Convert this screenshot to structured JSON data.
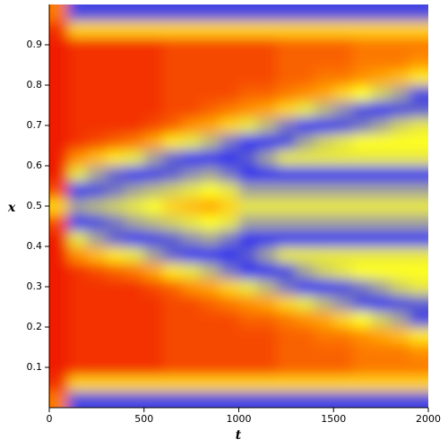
{
  "chart_data": {
    "type": "heatmap",
    "xlabel": "t",
    "ylabel": "x",
    "xlim": [
      0,
      2000
    ],
    "ylim": [
      0,
      1
    ],
    "xticks": [
      0,
      500,
      1000,
      1500,
      2000
    ],
    "yticks": [
      0.1,
      0.2,
      0.3,
      0.4,
      0.5,
      0.6,
      0.7,
      0.8,
      0.9
    ],
    "zlim": [
      0,
      1
    ],
    "colorscale": [
      [
        0,
        "#1414ff"
      ],
      [
        0.25,
        "#8c8cb4"
      ],
      [
        0.5,
        "#ffff1e"
      ],
      [
        0.75,
        "#ff9000"
      ],
      [
        1,
        "#f01c00"
      ]
    ],
    "x": [
      50,
      150,
      250,
      350,
      450,
      550,
      650,
      750,
      850,
      950,
      1050,
      1150,
      1250,
      1350,
      1450,
      1550,
      1650,
      1750,
      1850,
      1950
    ],
    "y": [
      0.02,
      0.06,
      0.1,
      0.14,
      0.18,
      0.22,
      0.26,
      0.3,
      0.34,
      0.38,
      0.42,
      0.46,
      0.5,
      0.54,
      0.58,
      0.62,
      0.66,
      0.7,
      0.74,
      0.78,
      0.82,
      0.86,
      0.9,
      0.94,
      0.98
    ],
    "z": [
      [
        0.8,
        0.1,
        0.1,
        0.1,
        0.1,
        0.1,
        0.1,
        0.1,
        0.1,
        0.1,
        0.1,
        0.1,
        0.1,
        0.1,
        0.1,
        0.1,
        0.1,
        0.1,
        0.1,
        0.1
      ],
      [
        0.95,
        0.6,
        0.6,
        0.6,
        0.6,
        0.6,
        0.6,
        0.6,
        0.6,
        0.6,
        0.6,
        0.6,
        0.6,
        0.6,
        0.6,
        0.6,
        0.6,
        0.6,
        0.6,
        0.6
      ],
      [
        1,
        0.95,
        0.95,
        0.95,
        0.95,
        0.95,
        0.9,
        0.9,
        0.9,
        0.9,
        0.9,
        0.9,
        0.85,
        0.85,
        0.85,
        0.85,
        0.8,
        0.8,
        0.8,
        0.8
      ],
      [
        1,
        0.95,
        0.95,
        0.95,
        0.95,
        0.95,
        0.9,
        0.9,
        0.9,
        0.9,
        0.9,
        0.9,
        0.85,
        0.85,
        0.85,
        0.85,
        0.8,
        0.8,
        0.8,
        0.75
      ],
      [
        1,
        0.95,
        0.95,
        0.95,
        0.95,
        0.95,
        0.9,
        0.9,
        0.9,
        0.9,
        0.9,
        0.9,
        0.85,
        0.85,
        0.8,
        0.8,
        0.75,
        0.7,
        0.65,
        0.55
      ],
      [
        1,
        0.95,
        0.95,
        0.95,
        0.95,
        0.95,
        0.9,
        0.9,
        0.9,
        0.9,
        0.85,
        0.85,
        0.8,
        0.75,
        0.7,
        0.6,
        0.5,
        0.4,
        0.3,
        0.1
      ],
      [
        1,
        0.95,
        0.95,
        0.95,
        0.95,
        0.95,
        0.9,
        0.9,
        0.85,
        0.8,
        0.75,
        0.7,
        0.6,
        0.45,
        0.35,
        0.25,
        0.1,
        0.05,
        0.1,
        0.15
      ],
      [
        1,
        0.95,
        0.95,
        0.95,
        0.95,
        0.9,
        0.85,
        0.75,
        0.7,
        0.6,
        0.45,
        0.35,
        0.2,
        0.05,
        0.05,
        0.1,
        0.2,
        0.3,
        0.4,
        0.45
      ],
      [
        1,
        0.95,
        0.9,
        0.85,
        0.8,
        0.7,
        0.55,
        0.45,
        0.35,
        0.2,
        0.05,
        0.05,
        0.1,
        0.3,
        0.4,
        0.45,
        0.5,
        0.5,
        0.5,
        0.5
      ],
      [
        1,
        0.75,
        0.65,
        0.55,
        0.45,
        0.3,
        0.15,
        0.05,
        0.05,
        0.05,
        0.15,
        0.3,
        0.45,
        0.45,
        0.45,
        0.45,
        0.45,
        0.45,
        0.45,
        0.45
      ],
      [
        1,
        0.45,
        0.3,
        0.15,
        0.05,
        0.08,
        0.15,
        0.25,
        0.3,
        0.2,
        0.05,
        0.05,
        0.05,
        0.05,
        0.05,
        0.05,
        0.05,
        0.05,
        0.05,
        0.05
      ],
      [
        0.9,
        0.05,
        0.1,
        0.2,
        0.3,
        0.35,
        0.4,
        0.45,
        0.5,
        0.45,
        0.3,
        0.3,
        0.3,
        0.3,
        0.3,
        0.3,
        0.3,
        0.3,
        0.3,
        0.3
      ],
      [
        0.6,
        0.3,
        0.35,
        0.4,
        0.45,
        0.5,
        0.6,
        0.65,
        0.7,
        0.6,
        0.45,
        0.45,
        0.45,
        0.45,
        0.45,
        0.45,
        0.45,
        0.45,
        0.45,
        0.45
      ],
      [
        0.9,
        0.05,
        0.1,
        0.2,
        0.3,
        0.35,
        0.4,
        0.45,
        0.5,
        0.45,
        0.3,
        0.3,
        0.3,
        0.3,
        0.3,
        0.3,
        0.3,
        0.3,
        0.3,
        0.3
      ],
      [
        1,
        0.45,
        0.3,
        0.15,
        0.05,
        0.08,
        0.15,
        0.25,
        0.3,
        0.2,
        0.05,
        0.05,
        0.05,
        0.05,
        0.05,
        0.05,
        0.05,
        0.05,
        0.05,
        0.05
      ],
      [
        1,
        0.75,
        0.65,
        0.55,
        0.45,
        0.3,
        0.15,
        0.05,
        0.05,
        0.05,
        0.15,
        0.3,
        0.45,
        0.45,
        0.45,
        0.45,
        0.45,
        0.45,
        0.45,
        0.45
      ],
      [
        1,
        0.95,
        0.9,
        0.85,
        0.8,
        0.7,
        0.55,
        0.45,
        0.35,
        0.2,
        0.05,
        0.05,
        0.1,
        0.3,
        0.4,
        0.45,
        0.5,
        0.5,
        0.5,
        0.5
      ],
      [
        1,
        0.95,
        0.95,
        0.95,
        0.95,
        0.9,
        0.85,
        0.75,
        0.7,
        0.6,
        0.45,
        0.35,
        0.2,
        0.05,
        0.05,
        0.1,
        0.2,
        0.3,
        0.4,
        0.45
      ],
      [
        1,
        0.95,
        0.95,
        0.95,
        0.95,
        0.95,
        0.9,
        0.9,
        0.85,
        0.8,
        0.75,
        0.7,
        0.6,
        0.45,
        0.35,
        0.25,
        0.1,
        0.05,
        0.1,
        0.15
      ],
      [
        1,
        0.95,
        0.95,
        0.95,
        0.95,
        0.95,
        0.9,
        0.9,
        0.9,
        0.9,
        0.85,
        0.85,
        0.8,
        0.75,
        0.7,
        0.6,
        0.5,
        0.4,
        0.3,
        0.1
      ],
      [
        1,
        0.95,
        0.95,
        0.95,
        0.95,
        0.95,
        0.9,
        0.9,
        0.9,
        0.9,
        0.9,
        0.9,
        0.85,
        0.85,
        0.8,
        0.8,
        0.75,
        0.7,
        0.65,
        0.55
      ],
      [
        1,
        0.95,
        0.95,
        0.95,
        0.95,
        0.95,
        0.9,
        0.9,
        0.9,
        0.9,
        0.9,
        0.9,
        0.85,
        0.85,
        0.85,
        0.85,
        0.8,
        0.8,
        0.8,
        0.75
      ],
      [
        1,
        0.95,
        0.95,
        0.95,
        0.95,
        0.95,
        0.9,
        0.9,
        0.9,
        0.9,
        0.9,
        0.9,
        0.85,
        0.85,
        0.85,
        0.85,
        0.8,
        0.8,
        0.8,
        0.8
      ],
      [
        0.95,
        0.6,
        0.6,
        0.6,
        0.6,
        0.6,
        0.6,
        0.6,
        0.6,
        0.6,
        0.6,
        0.6,
        0.6,
        0.6,
        0.6,
        0.6,
        0.6,
        0.6,
        0.6,
        0.6
      ],
      [
        0.8,
        0.1,
        0.1,
        0.1,
        0.1,
        0.1,
        0.1,
        0.1,
        0.1,
        0.1,
        0.1,
        0.1,
        0.1,
        0.1,
        0.1,
        0.1,
        0.1,
        0.1,
        0.1,
        0.1
      ]
    ]
  }
}
